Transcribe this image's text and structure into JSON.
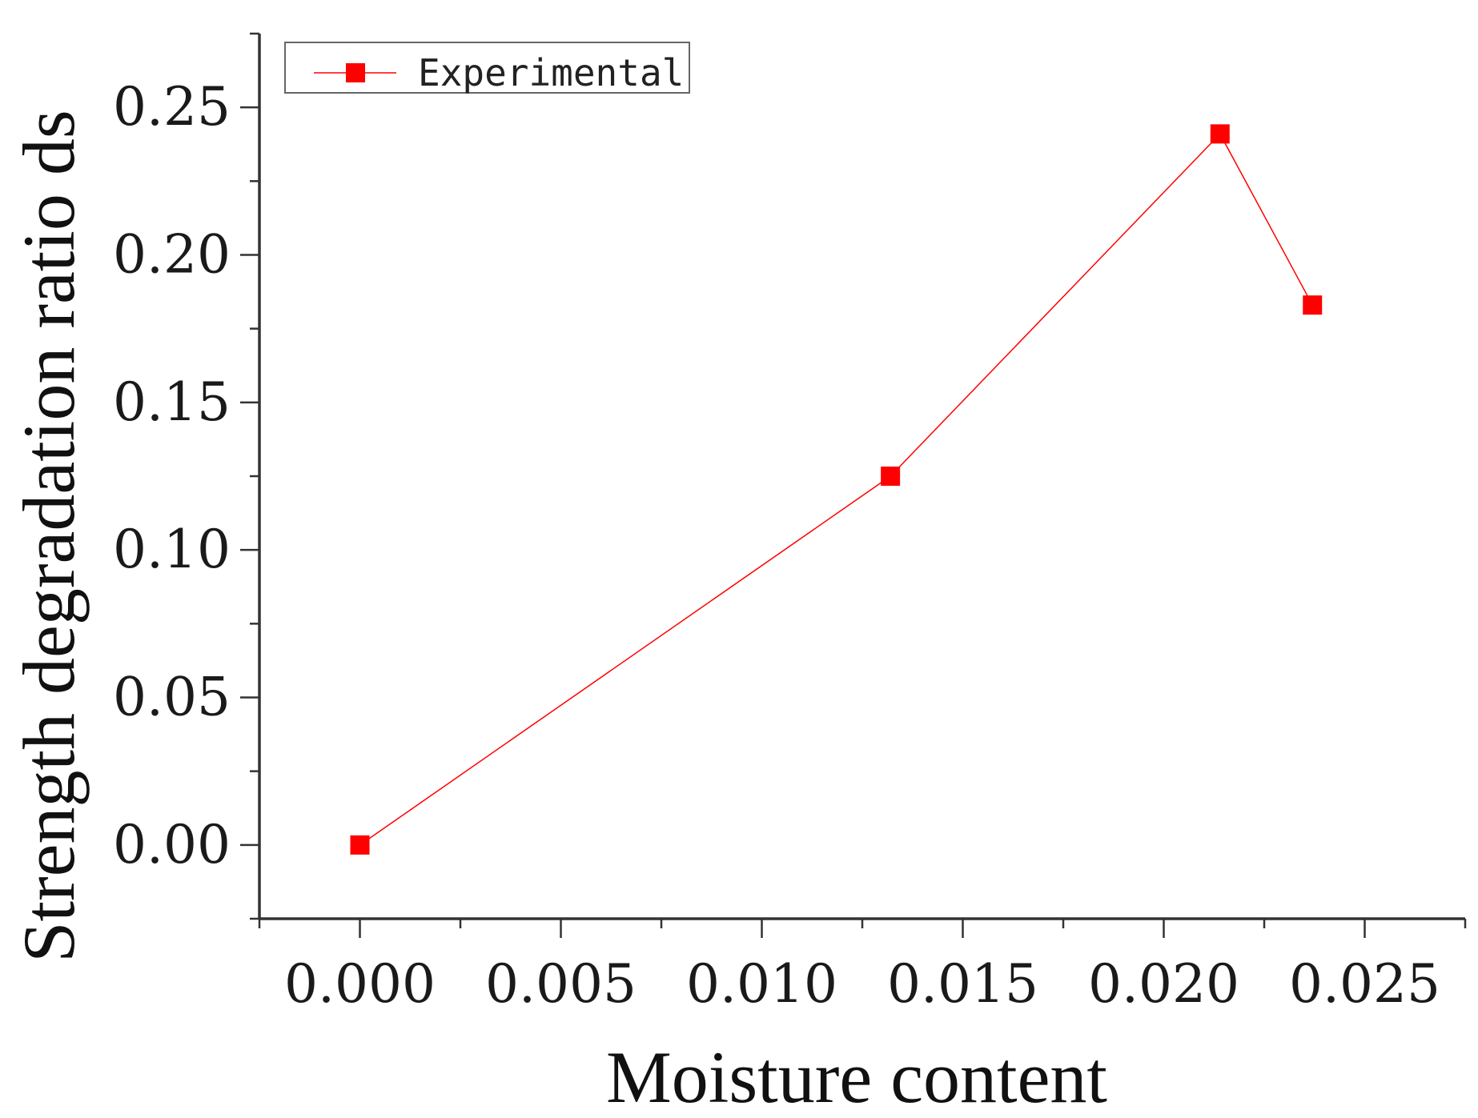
{
  "chart_data": {
    "type": "line",
    "xlabel": "Moisture content",
    "ylabel": "Strength degradation ratio ds",
    "xlim": [
      -0.0025,
      0.0275
    ],
    "ylim": [
      -0.025,
      0.275
    ],
    "x_ticks": [
      "0.000",
      "0.005",
      "0.010",
      "0.015",
      "0.020",
      "0.025"
    ],
    "x_tick_values": [
      0,
      0.005,
      0.01,
      0.015,
      0.02,
      0.025
    ],
    "y_ticks": [
      "0.00",
      "0.05",
      "0.10",
      "0.15",
      "0.20",
      "0.25"
    ],
    "y_tick_values": [
      0,
      0.05,
      0.1,
      0.15,
      0.2,
      0.25
    ],
    "grid": false,
    "legend_position": "top-left",
    "series": [
      {
        "name": "Experimental",
        "color": "#ff0000",
        "marker": "square",
        "x": [
          0,
          0.0132,
          0.0214,
          0.0237
        ],
        "y": [
          0,
          0.125,
          0.241,
          0.183
        ]
      }
    ]
  }
}
